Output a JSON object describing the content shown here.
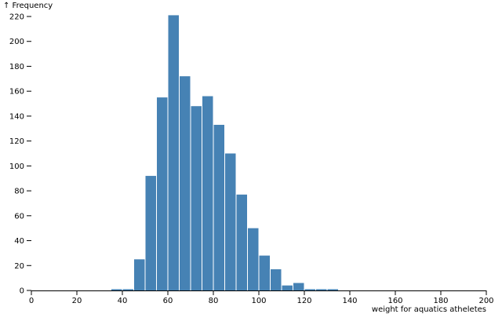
{
  "chart_data": {
    "type": "bar",
    "title": "",
    "xlabel": "weight for aquatics atheletes",
    "ylabel": "↑ Frequency",
    "xlim": [
      0,
      200
    ],
    "ylim": [
      0,
      230
    ],
    "x_ticks": [
      0,
      20,
      40,
      60,
      80,
      100,
      120,
      140,
      160,
      180,
      200
    ],
    "y_ticks": [
      0,
      20,
      40,
      60,
      80,
      100,
      120,
      140,
      160,
      180,
      200,
      220
    ],
    "bar_color": "#4682b4",
    "grid": false,
    "bins": [
      {
        "x0": 35,
        "x1": 40,
        "value": 1
      },
      {
        "x0": 40,
        "x1": 45,
        "value": 1
      },
      {
        "x0": 45,
        "x1": 50,
        "value": 25
      },
      {
        "x0": 50,
        "x1": 55,
        "value": 92
      },
      {
        "x0": 55,
        "x1": 60,
        "value": 155
      },
      {
        "x0": 60,
        "x1": 65,
        "value": 221
      },
      {
        "x0": 65,
        "x1": 70,
        "value": 172
      },
      {
        "x0": 70,
        "x1": 75,
        "value": 148
      },
      {
        "x0": 75,
        "x1": 80,
        "value": 156
      },
      {
        "x0": 80,
        "x1": 85,
        "value": 133
      },
      {
        "x0": 85,
        "x1": 90,
        "value": 110
      },
      {
        "x0": 90,
        "x1": 95,
        "value": 77
      },
      {
        "x0": 95,
        "x1": 100,
        "value": 50
      },
      {
        "x0": 100,
        "x1": 105,
        "value": 28
      },
      {
        "x0": 105,
        "x1": 110,
        "value": 17
      },
      {
        "x0": 110,
        "x1": 115,
        "value": 4
      },
      {
        "x0": 115,
        "x1": 120,
        "value": 6
      },
      {
        "x0": 120,
        "x1": 125,
        "value": 1
      },
      {
        "x0": 125,
        "x1": 130,
        "value": 1
      },
      {
        "x0": 130,
        "x1": 135,
        "value": 1
      }
    ]
  }
}
